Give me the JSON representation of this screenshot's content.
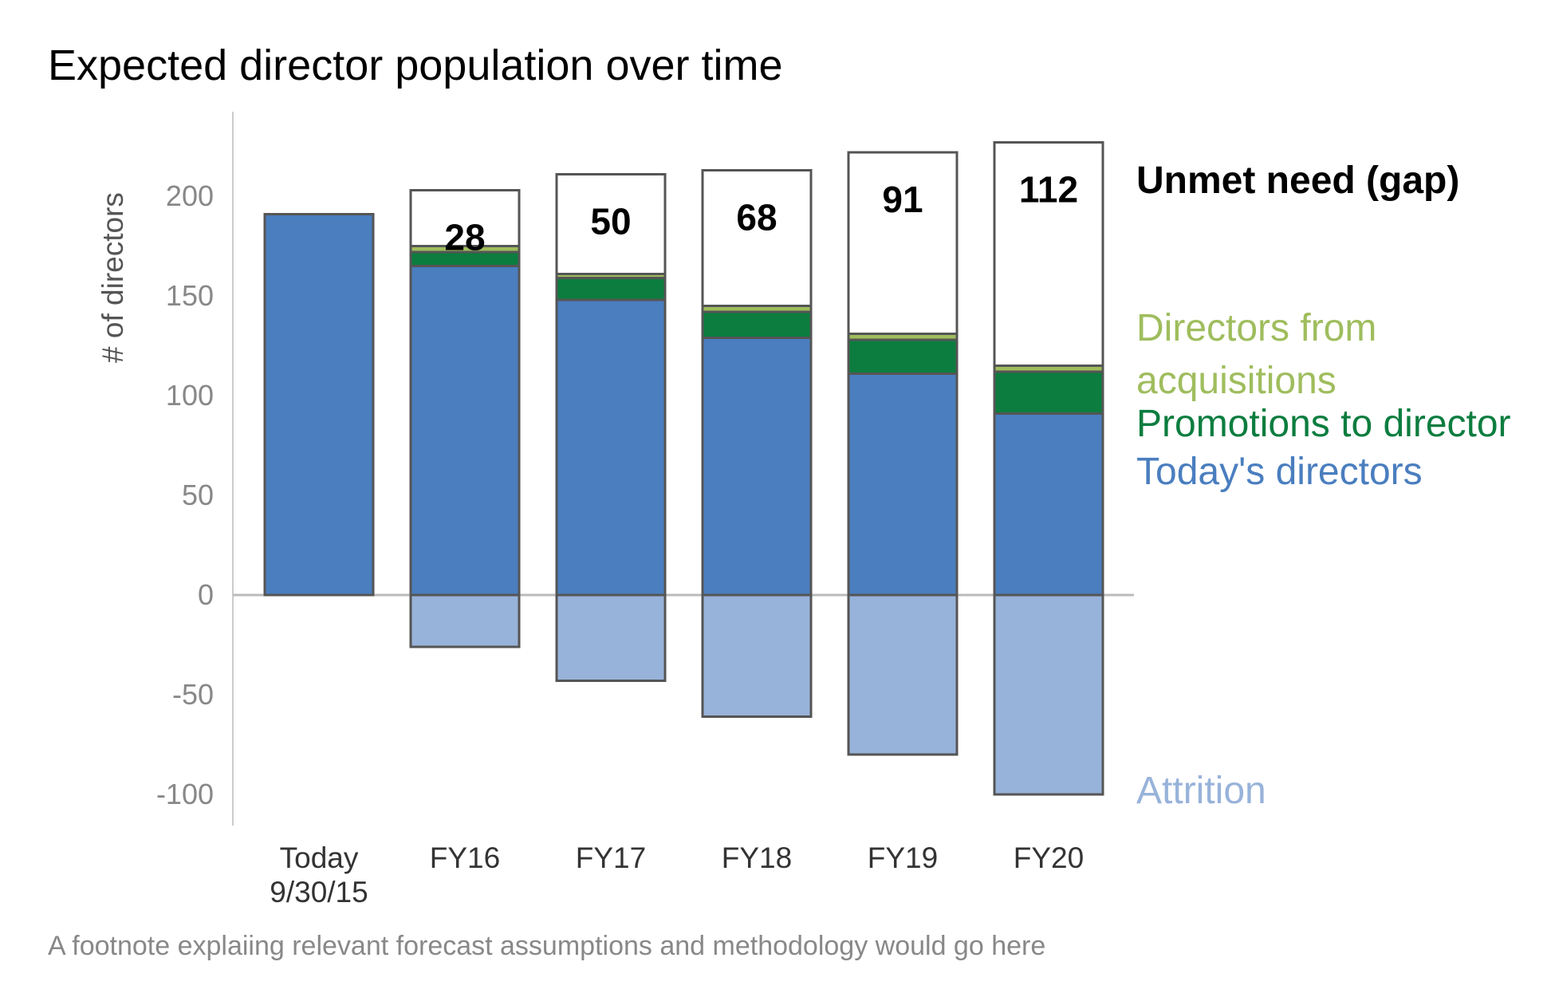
{
  "chart_data": {
    "type": "bar",
    "stacked": true,
    "title": "Expected director population over time",
    "ylabel": "# of directors",
    "xlabel": "",
    "ylim": [
      -115,
      243
    ],
    "yticks": [
      200,
      150,
      100,
      50,
      0,
      -50,
      -100
    ],
    "categories": [
      "Today\n9/30/15",
      "FY16",
      "FY17",
      "FY18",
      "FY19",
      "FY20"
    ],
    "category_lines": [
      [
        "Today",
        "9/30/15"
      ],
      [
        "FY16"
      ],
      [
        "FY17"
      ],
      [
        "FY18"
      ],
      [
        "FY19"
      ],
      [
        "FY20"
      ]
    ],
    "series": [
      {
        "name": "Today's directors",
        "color": "#4a7ebf",
        "values": [
          191,
          165,
          148,
          129,
          111,
          91
        ]
      },
      {
        "name": "Promotions to director",
        "color": "#0c7d3f",
        "values": [
          0,
          7,
          11,
          13,
          17,
          21
        ]
      },
      {
        "name": "Directors from acquisitions",
        "color": "#9fbd5d",
        "values": [
          0,
          3,
          2,
          3,
          3,
          3
        ]
      },
      {
        "name": "Unmet need (gap)",
        "color": "#ffffff",
        "values": [
          0,
          28,
          50,
          68,
          91,
          112
        ]
      },
      {
        "name": "Attrition",
        "color": "#98b3da",
        "values": [
          0,
          -26,
          -43,
          -61,
          -80,
          -100
        ]
      }
    ],
    "gap_labels": [
      "",
      "28",
      "50",
      "68",
      "91",
      "112"
    ],
    "legend": [
      {
        "lines": [
          "Unmet need (gap)"
        ],
        "color": "#000000",
        "bold": true,
        "anchor_value": 208
      },
      {
        "lines": [
          "Directors from",
          "acquisitions"
        ],
        "color": "#9fbd5d",
        "bold": false,
        "anchor_value": 134
      },
      {
        "lines": [
          "Promotions to director"
        ],
        "color": "#0c7d3f",
        "bold": false,
        "anchor_value": 86
      },
      {
        "lines": [
          "Today's directors"
        ],
        "color": "#4a7ebf",
        "bold": false,
        "anchor_value": 62
      },
      {
        "lines": [
          "Attrition"
        ],
        "color": "#98b3da",
        "bold": false,
        "anchor_value": -98
      }
    ],
    "footnote": "A footnote explaiing relevant forecast assumptions and methodology would go here"
  }
}
